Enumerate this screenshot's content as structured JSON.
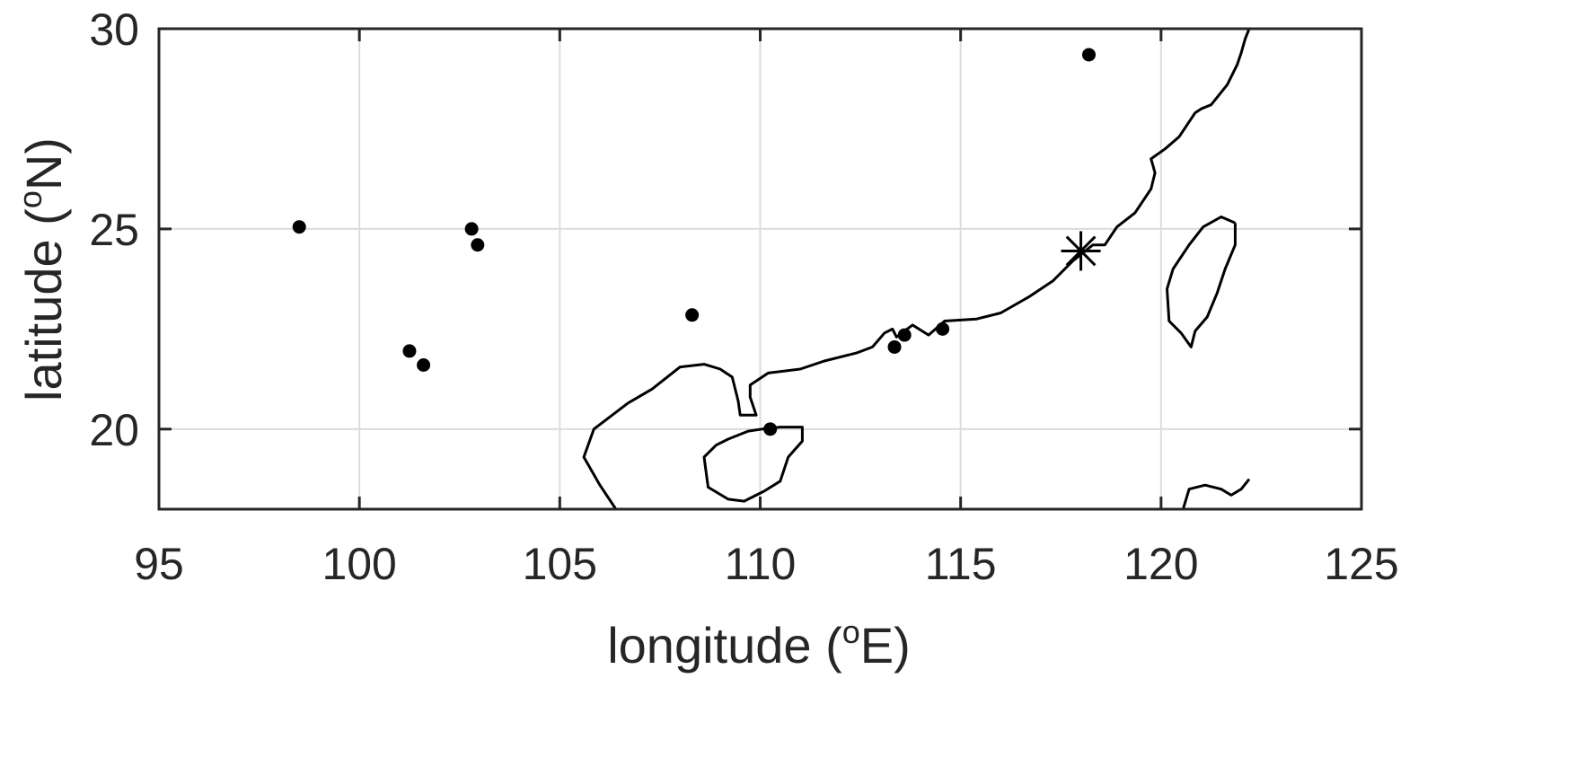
{
  "chart_data": {
    "type": "scatter",
    "xlabel": {
      "prefix": "longitude (",
      "sup": "o",
      "suffix": "E)"
    },
    "ylabel": {
      "prefix": "latitude (",
      "sup": "o",
      "suffix": "N)"
    },
    "xlim": [
      95,
      125
    ],
    "ylim": [
      18,
      30
    ],
    "xticks": [
      95,
      100,
      105,
      110,
      115,
      120,
      125
    ],
    "yticks": [
      20,
      25,
      30
    ],
    "grid": true,
    "colors": {
      "axis": "#262626",
      "grid": "#dcdcdc",
      "marker": "#000000",
      "coastline": "#000000"
    },
    "stations": [
      {
        "lon": 98.5,
        "lat": 25.05
      },
      {
        "lon": 101.25,
        "lat": 21.95
      },
      {
        "lon": 101.6,
        "lat": 21.6
      },
      {
        "lon": 102.8,
        "lat": 25.0
      },
      {
        "lon": 102.95,
        "lat": 24.6
      },
      {
        "lon": 108.3,
        "lat": 22.85
      },
      {
        "lon": 110.25,
        "lat": 20.0
      },
      {
        "lon": 113.35,
        "lat": 22.05
      },
      {
        "lon": 113.6,
        "lat": 22.35
      },
      {
        "lon": 114.55,
        "lat": 22.5
      },
      {
        "lon": 118.2,
        "lat": 29.35
      }
    ],
    "reference_site": {
      "lon": 118.0,
      "lat": 24.45,
      "marker": "asterisk"
    },
    "coastlines": [
      {
        "name": "mainland-coast",
        "points": [
          [
            106.4,
            18
          ],
          [
            106.0,
            18.6
          ],
          [
            105.6,
            19.3
          ],
          [
            105.85,
            20.0
          ],
          [
            106.7,
            20.65
          ],
          [
            107.3,
            21.0
          ],
          [
            108.0,
            21.55
          ],
          [
            108.6,
            21.62
          ],
          [
            109.0,
            21.5
          ],
          [
            109.3,
            21.3
          ],
          [
            109.45,
            20.7
          ],
          [
            109.5,
            20.35
          ],
          [
            109.9,
            20.35
          ],
          [
            109.75,
            20.8
          ],
          [
            109.75,
            21.1
          ],
          [
            110.2,
            21.4
          ],
          [
            111.0,
            21.5
          ],
          [
            111.6,
            21.7
          ],
          [
            112.4,
            21.9
          ],
          [
            112.8,
            22.05
          ],
          [
            113.1,
            22.4
          ],
          [
            113.3,
            22.5
          ],
          [
            113.4,
            22.3
          ],
          [
            113.8,
            22.6
          ],
          [
            114.2,
            22.35
          ],
          [
            114.6,
            22.7
          ],
          [
            115.4,
            22.75
          ],
          [
            116.0,
            22.9
          ],
          [
            116.7,
            23.3
          ],
          [
            117.3,
            23.7
          ],
          [
            117.8,
            24.2
          ],
          [
            118.3,
            24.6
          ],
          [
            118.6,
            24.6
          ],
          [
            118.9,
            25.05
          ],
          [
            119.35,
            25.4
          ],
          [
            119.75,
            26.0
          ],
          [
            119.85,
            26.4
          ],
          [
            119.75,
            26.75
          ],
          [
            120.1,
            27.0
          ],
          [
            120.45,
            27.3
          ],
          [
            120.85,
            27.9
          ],
          [
            121.0,
            28.0
          ],
          [
            121.25,
            28.1
          ],
          [
            121.65,
            28.6
          ],
          [
            121.9,
            29.1
          ],
          [
            122.0,
            29.4
          ],
          [
            122.1,
            29.75
          ],
          [
            122.2,
            30
          ]
        ]
      },
      {
        "name": "hainan-island",
        "points": [
          [
            110.05,
            20.0
          ],
          [
            110.5,
            20.05
          ],
          [
            111.05,
            20.05
          ],
          [
            111.05,
            19.7
          ],
          [
            110.7,
            19.3
          ],
          [
            110.5,
            18.7
          ],
          [
            110.1,
            18.45
          ],
          [
            109.6,
            18.2
          ],
          [
            109.2,
            18.25
          ],
          [
            108.7,
            18.55
          ],
          [
            108.6,
            19.3
          ],
          [
            108.9,
            19.6
          ],
          [
            109.2,
            19.75
          ],
          [
            109.7,
            19.95
          ],
          [
            110.05,
            20.0
          ]
        ]
      },
      {
        "name": "taiwan-island",
        "points": [
          [
            121.85,
            25.15
          ],
          [
            121.5,
            25.3
          ],
          [
            121.05,
            25.05
          ],
          [
            120.7,
            24.6
          ],
          [
            120.3,
            24.0
          ],
          [
            120.15,
            23.5
          ],
          [
            120.2,
            22.7
          ],
          [
            120.5,
            22.4
          ],
          [
            120.75,
            22.05
          ],
          [
            120.85,
            22.45
          ],
          [
            121.15,
            22.8
          ],
          [
            121.4,
            23.4
          ],
          [
            121.6,
            24.0
          ],
          [
            121.85,
            24.6
          ],
          [
            121.85,
            25.15
          ]
        ]
      },
      {
        "name": "luzon-coast",
        "points": [
          [
            120.55,
            18
          ],
          [
            120.7,
            18.5
          ],
          [
            121.1,
            18.6
          ],
          [
            121.5,
            18.5
          ],
          [
            121.75,
            18.35
          ],
          [
            122.0,
            18.5
          ],
          [
            122.2,
            18.75
          ]
        ]
      }
    ]
  }
}
